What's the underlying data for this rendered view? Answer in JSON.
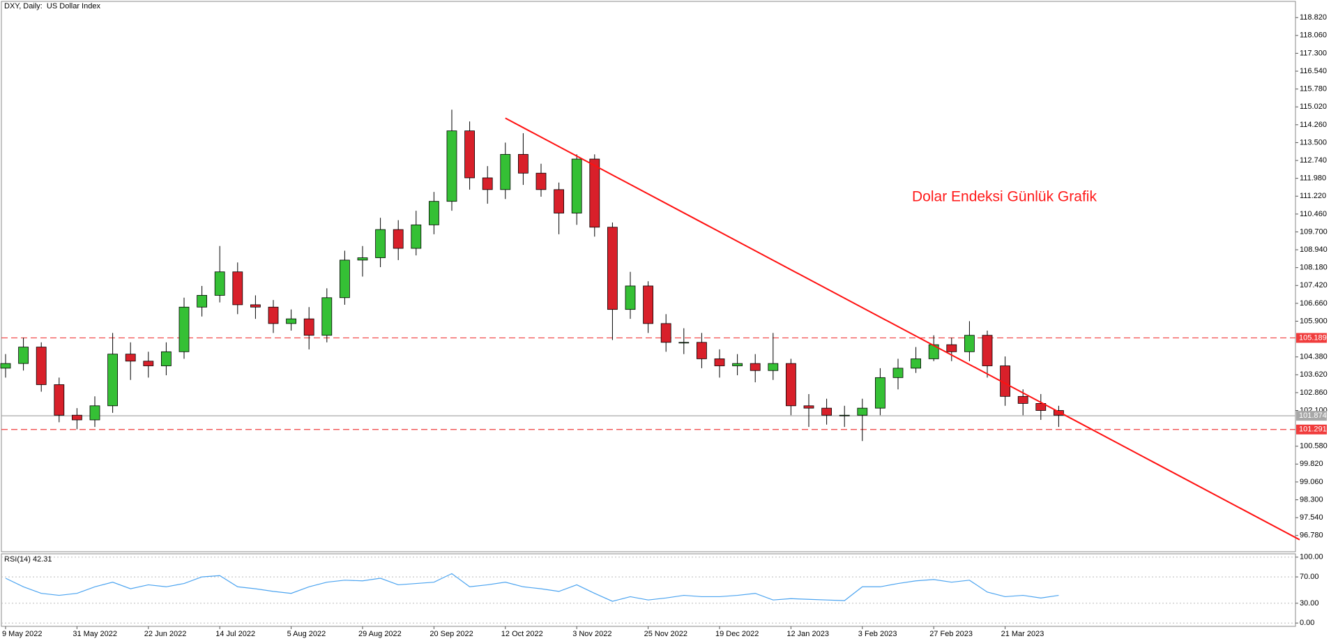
{
  "chart_data": [
    {
      "type": "candlestick",
      "title": "DXY, Daily:  US Dollar Index",
      "annotation": "Dolar Endeksi Günlük Grafik",
      "annotation_color": "#ff1a1a",
      "categories": [
        "9 May 2022",
        null,
        null,
        null,
        "31 May 2022",
        null,
        null,
        null,
        "22 Jun 2022",
        null,
        null,
        null,
        "14 Jul 2022",
        null,
        null,
        null,
        "5 Aug 2022",
        null,
        null,
        null,
        "29 Aug 2022",
        null,
        null,
        null,
        "20 Sep 2022",
        null,
        null,
        null,
        "12 Oct 2022",
        null,
        null,
        null,
        "3 Nov 2022",
        null,
        null,
        null,
        "25 Nov 2022",
        null,
        null,
        null,
        "19 Dec 2022",
        null,
        null,
        null,
        "12 Jan 2023",
        null,
        null,
        null,
        "3 Feb 2023",
        null,
        null,
        null,
        "27 Feb 2023",
        null,
        null,
        null,
        "21 Mar 2023",
        null,
        null,
        null
      ],
      "open": [
        103.9,
        104.1,
        104.8,
        103.2,
        101.9,
        101.7,
        102.3,
        104.5,
        104.2,
        104.0,
        104.6,
        106.5,
        107.0,
        108.0,
        106.6,
        106.5,
        105.8,
        106.0,
        105.3,
        106.9,
        108.5,
        108.6,
        109.8,
        109.0,
        110.0,
        111.0,
        114.0,
        112.0,
        111.5,
        113.0,
        112.2,
        111.5,
        110.5,
        112.8,
        109.9,
        106.4,
        107.4,
        105.8,
        105.0,
        105.0,
        104.3,
        104.0,
        104.1,
        103.8,
        104.1,
        102.3,
        102.2,
        101.9,
        101.9,
        102.2,
        103.5,
        103.9,
        104.3,
        104.9,
        104.6,
        105.3,
        104.0,
        102.7,
        102.4,
        102.1
      ],
      "high": [
        104.5,
        105.2,
        105.0,
        103.5,
        102.2,
        102.7,
        105.4,
        105.0,
        104.6,
        105.0,
        106.9,
        107.4,
        109.1,
        108.4,
        107.0,
        106.8,
        106.4,
        106.5,
        107.3,
        108.9,
        109.1,
        110.3,
        110.2,
        110.6,
        111.4,
        114.9,
        114.4,
        112.5,
        113.5,
        113.9,
        112.6,
        111.8,
        113.0,
        113.0,
        110.1,
        108.0,
        107.6,
        106.2,
        105.6,
        105.4,
        104.7,
        104.5,
        104.5,
        105.4,
        104.3,
        102.8,
        102.6,
        102.3,
        102.6,
        103.9,
        104.3,
        104.8,
        105.3,
        105.2,
        105.9,
        105.5,
        104.4,
        103.0,
        102.8,
        102.3
      ],
      "low": [
        103.5,
        103.8,
        102.9,
        101.6,
        101.3,
        101.4,
        102.0,
        103.4,
        103.5,
        103.6,
        104.3,
        106.1,
        106.7,
        106.2,
        106.0,
        105.4,
        105.5,
        104.7,
        105.0,
        106.6,
        107.8,
        108.2,
        108.5,
        108.7,
        109.6,
        110.6,
        111.5,
        110.9,
        111.1,
        111.7,
        111.2,
        109.6,
        110.0,
        109.5,
        105.1,
        106.0,
        105.4,
        104.6,
        104.5,
        103.9,
        103.5,
        103.6,
        103.3,
        103.4,
        101.9,
        101.4,
        101.5,
        101.4,
        100.8,
        101.9,
        103.0,
        103.7,
        104.2,
        104.2,
        104.2,
        103.5,
        102.3,
        101.9,
        101.7,
        101.4
      ],
      "close": [
        104.1,
        104.8,
        103.2,
        101.9,
        101.7,
        102.3,
        104.5,
        104.2,
        104.0,
        104.6,
        106.5,
        107.0,
        108.0,
        106.6,
        106.5,
        105.8,
        106.0,
        105.3,
        106.9,
        108.5,
        108.6,
        109.8,
        109.0,
        110.0,
        111.0,
        114.0,
        112.0,
        111.5,
        113.0,
        112.2,
        111.5,
        110.5,
        112.8,
        109.9,
        106.4,
        107.4,
        105.8,
        105.0,
        105.0,
        104.3,
        104.0,
        104.1,
        103.8,
        104.1,
        102.3,
        102.2,
        101.9,
        101.9,
        102.2,
        103.5,
        103.9,
        104.3,
        104.9,
        104.6,
        105.3,
        104.0,
        102.7,
        102.4,
        102.1,
        101.9
      ],
      "up_color": "#35c035",
      "down_color": "#d8202a",
      "ylim": [
        96.09,
        119.45
      ],
      "yticks": [
        {
          "value": 118.82,
          "label": "118.820"
        },
        {
          "value": 118.06,
          "label": "118.060"
        },
        {
          "value": 117.3,
          "label": "117.300"
        },
        {
          "value": 116.54,
          "label": "116.540"
        },
        {
          "value": 115.78,
          "label": "115.780"
        },
        {
          "value": 115.02,
          "label": "115.020"
        },
        {
          "value": 114.26,
          "label": "114.260"
        },
        {
          "value": 113.5,
          "label": "113.500"
        },
        {
          "value": 112.74,
          "label": "112.740"
        },
        {
          "value": 111.98,
          "label": "111.980"
        },
        {
          "value": 111.22,
          "label": "111.220"
        },
        {
          "value": 110.46,
          "label": "110.460"
        },
        {
          "value": 109.7,
          "label": "109.700"
        },
        {
          "value": 108.94,
          "label": "108.940"
        },
        {
          "value": 108.18,
          "label": "108.180"
        },
        {
          "value": 107.42,
          "label": "107.420"
        },
        {
          "value": 106.66,
          "label": "106.660"
        },
        {
          "value": 105.9,
          "label": "105.900"
        },
        {
          "value": 104.38,
          "label": "104.380"
        },
        {
          "value": 103.62,
          "label": "103.620"
        },
        {
          "value": 102.86,
          "label": "102.860"
        },
        {
          "value": 102.1,
          "label": "102.100"
        },
        {
          "value": 100.58,
          "label": "100.580"
        },
        {
          "value": 99.82,
          "label": "99.820"
        },
        {
          "value": 99.06,
          "label": "99.060"
        },
        {
          "value": 98.3,
          "label": "98.300"
        },
        {
          "value": 97.54,
          "label": "97.540"
        },
        {
          "value": 96.78,
          "label": "96.780"
        }
      ],
      "levels": [
        {
          "value": 105.189,
          "color": "#f03c3c",
          "style": "dashed"
        },
        {
          "value": 101.874,
          "color": "#a8a8a8",
          "style": "solid"
        },
        {
          "value": 101.291,
          "color": "#f03c3c",
          "style": "dashed"
        }
      ],
      "trendline": {
        "x": [
          28,
          72.5
        ],
        "y": [
          114.54,
          96.6
        ],
        "color": "#ff1010"
      }
    },
    {
      "type": "line",
      "title": "RSI(14) 42.31",
      "values": [
        68,
        55,
        45,
        42,
        45,
        55,
        62,
        52,
        58,
        55,
        60,
        70,
        72,
        55,
        52,
        48,
        45,
        55,
        62,
        65,
        64,
        68,
        58,
        60,
        62,
        75,
        55,
        58,
        62,
        55,
        52,
        48,
        58,
        45,
        33,
        40,
        35,
        38,
        42,
        40,
        40,
        42,
        45,
        35,
        37,
        36,
        35,
        34,
        55,
        55,
        60,
        64,
        66,
        62,
        65,
        47,
        40,
        42,
        38,
        42
      ],
      "color": "#4aa3f0",
      "ylim": [
        -4,
        104
      ],
      "grid": true,
      "yticks": [
        {
          "value": 100,
          "label": "100.00"
        },
        {
          "value": 70,
          "label": "70.00"
        },
        {
          "value": 30,
          "label": "30.00"
        },
        {
          "value": 0,
          "label": "0.00"
        }
      ]
    }
  ]
}
